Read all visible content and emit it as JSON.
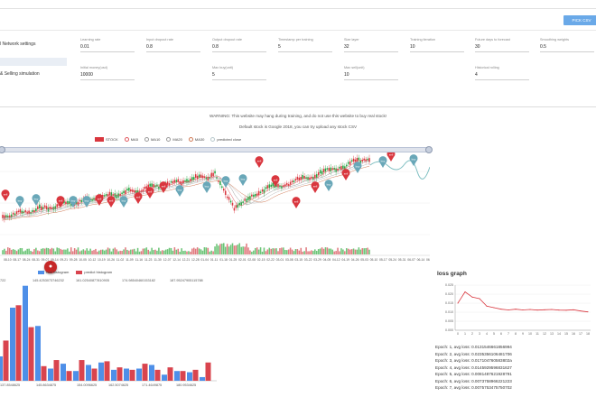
{
  "toolbar": {
    "pick_csv_label": "PICK CSV"
  },
  "sidebar": {
    "items": [
      {
        "label": "l Network settings"
      },
      {
        "label": ""
      },
      {
        "label": "& Selling simulation"
      }
    ]
  },
  "settings": {
    "row1": [
      {
        "label": "Learning rate",
        "value": "0.01"
      },
      {
        "label": "Input dropout rate",
        "value": "0.8"
      },
      {
        "label": "Output dropout rate",
        "value": "0.8"
      },
      {
        "label": "Timestamp per training",
        "value": "5"
      },
      {
        "label": "Size layer",
        "value": "32"
      },
      {
        "label": "Training iteration",
        "value": "10"
      },
      {
        "label": "Future days to forecast",
        "value": "30"
      },
      {
        "label": "Smoothing weights",
        "value": "0.5"
      }
    ],
    "row2": [
      {
        "label": "Initial money(usd)",
        "value": "10000"
      },
      {
        "label": "Max buy(unit)",
        "value": "5"
      },
      {
        "label": "Max sell(unit)",
        "value": "10"
      },
      {
        "label": "Historical rolling",
        "value": "4"
      }
    ]
  },
  "warning": {
    "line1": "WARNING: This website may hang during training, and do not use this website to buy real stock!",
    "line2": "Default stock is Google 2018, you can try upload any stock CSV"
  },
  "stock_chart": {
    "legend": [
      {
        "label": "STOCK",
        "color": "#d9363e",
        "kind": "rect"
      },
      {
        "label": "MA5",
        "color": "#e0585e",
        "kind": "circle"
      },
      {
        "label": "MA10",
        "color": "#9a9a9a",
        "kind": "circle"
      },
      {
        "label": "MA20",
        "color": "#999999",
        "kind": "circle"
      },
      {
        "label": "MA30",
        "color": "#d07a56",
        "kind": "circle"
      },
      {
        "label": "predicted close",
        "color": "#b8c8cc",
        "kind": "circle"
      }
    ],
    "pin_labels": {
      "buy": "buy",
      "sell": "sell"
    },
    "x_dates": [
      "08-10",
      "08-17",
      "08-24",
      "08-31",
      "09-07",
      "09-14",
      "09-21",
      "09-28",
      "10-05",
      "10-12",
      "10-19",
      "10-26",
      "11-02",
      "11-09",
      "11-16",
      "11-23",
      "11-30",
      "12-07",
      "12-14",
      "12-21",
      "12-28",
      "01-04",
      "01-11",
      "01-18",
      "01-25",
      "02-01",
      "02-08",
      "02-15",
      "02-22",
      "03-01",
      "03-08",
      "03-15",
      "03-22",
      "03-29",
      "04-05",
      "04-12",
      "04-19",
      "04-26",
      "05-03",
      "05-10",
      "05-17",
      "05-24",
      "05-31",
      "06-07",
      "06-14",
      "06-21"
    ],
    "colors": {
      "up": "#28a745",
      "down": "#d9363e",
      "predicted": "#7fbfc2",
      "buy_pin": "#69a7b8",
      "sell_pin": "#d9363e"
    }
  },
  "histogram": {
    "legend": [
      {
        "label": "real histogram",
        "color": "#4e8fe8"
      },
      {
        "label": "predict histogram",
        "color": "#d9444e"
      }
    ],
    "top_labels": [
      "722",
      "145.4253073746232",
      "161.02540877810905",
      "174.98540460153182",
      "187.95247905115788"
    ],
    "bottom_labels": [
      "137.8548625",
      "145.8634875",
      "154.0096625",
      "162.5074625",
      "171.4649875",
      "180.9534625"
    ],
    "chart_data": {
      "type": "bar",
      "series": [
        {
          "name": "real histogram",
          "values": [
            20,
            60,
            78,
            45,
            10,
            14,
            8,
            13,
            15,
            9,
            10,
            10,
            13,
            5,
            8,
            7,
            3
          ]
        },
        {
          "name": "predict histogram",
          "values": [
            33,
            62,
            44,
            12,
            17,
            8,
            17,
            10,
            16,
            11,
            9,
            14,
            9,
            11,
            8,
            9,
            15
          ]
        }
      ]
    }
  },
  "loss_graph": {
    "title": "loss graph",
    "chart_data": {
      "type": "line",
      "x": [
        0,
        1,
        2,
        3,
        4,
        5,
        6,
        7,
        8,
        9,
        10,
        11,
        12,
        13,
        14,
        15,
        16,
        17,
        18
      ],
      "values": [
        0.018,
        0.0255,
        0.022,
        0.021,
        0.016,
        0.015,
        0.014,
        0.0135,
        0.014,
        0.0135,
        0.0138,
        0.0134,
        0.0136,
        0.0138,
        0.0134,
        0.0133,
        0.0136,
        0.0128,
        0.0122
      ],
      "y_ticks": [
        "0.025",
        "0.020",
        "0.015",
        "0.010",
        "0.005",
        "0.000"
      ],
      "ylim": [
        0,
        0.03
      ],
      "color": "#d9363e"
    },
    "log": [
      "Epoch: 1, avg loss: 0.0131546661856994",
      "Epoch: 2, avg loss: 0.0235356106481706",
      "Epoch: 3, avg loss: 0.017104760583802a",
      "Epoch: 4, avg loss: 0.0145929596831627",
      "Epoch: 5, avg loss: 0.0081487621928791",
      "Epoch: 6, avg loss: 0.0073758966221223",
      "Epoch: 7, avg loss: 0.0075753475750702"
    ]
  }
}
